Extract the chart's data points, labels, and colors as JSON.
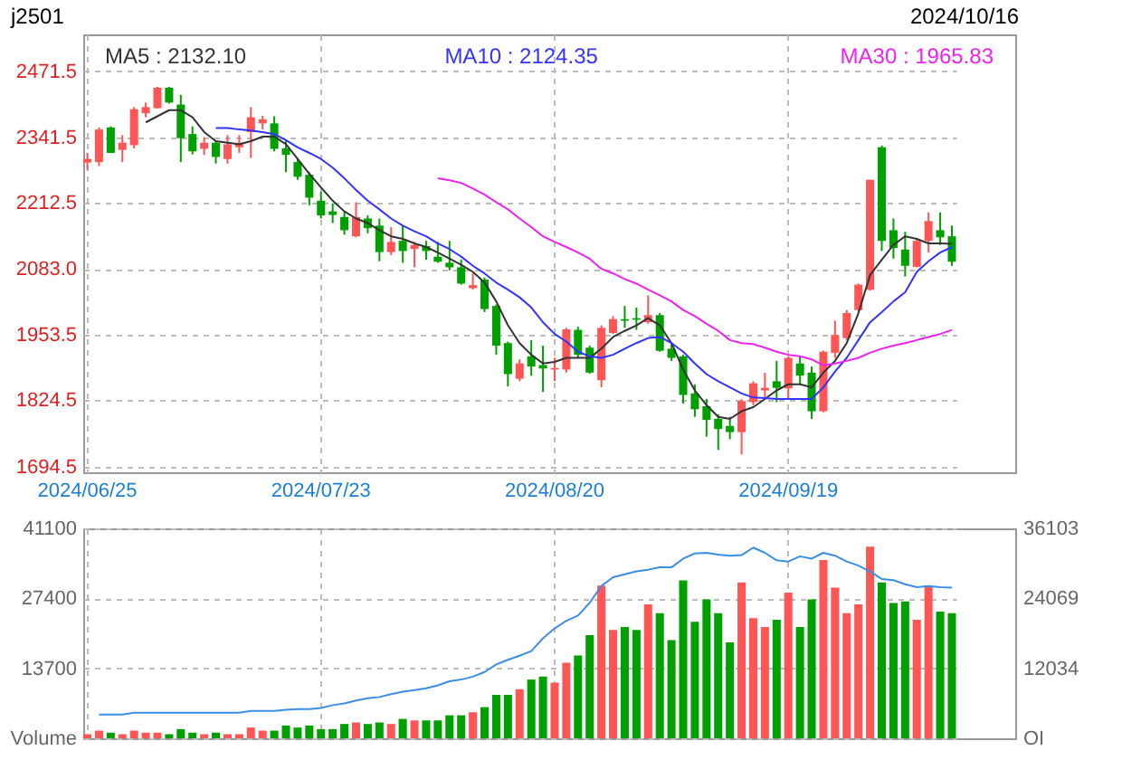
{
  "chart_data": [
    {
      "type": "candlestick",
      "title": "j2501",
      "annotations": [
        "2024/10/16"
      ],
      "legend": "top",
      "grid": true,
      "categories": [
        "2024/06/25",
        null,
        null,
        null,
        null,
        null,
        null,
        null,
        null,
        null,
        null,
        null,
        null,
        null,
        null,
        null,
        null,
        null,
        null,
        null,
        "2024/07/23",
        null,
        null,
        null,
        null,
        null,
        null,
        null,
        null,
        null,
        null,
        null,
        null,
        null,
        null,
        null,
        null,
        null,
        null,
        null,
        "2024/08/20",
        null,
        null,
        null,
        null,
        null,
        null,
        null,
        null,
        null,
        null,
        null,
        null,
        null,
        null,
        null,
        null,
        null,
        null,
        null,
        "2024/09/19",
        null,
        null,
        null,
        null,
        null,
        null,
        null,
        null,
        null,
        null,
        null,
        null,
        null,
        null
      ],
      "ylim": [
        1683,
        2544
      ],
      "yticks": [
        1694.5,
        1824.5,
        1953.5,
        {
          "value": 2083,
          "label": "2083.0"
        },
        2212.5,
        2341.5,
        2471.5
      ],
      "ohlc": [
        [
          2292,
          2311,
          2278,
          2299
        ],
        [
          2293,
          2361,
          2285,
          2357
        ],
        [
          2361,
          2363,
          2311,
          2311
        ],
        [
          2317,
          2346,
          2293,
          2331
        ],
        [
          2326,
          2401,
          2320,
          2397
        ],
        [
          2389,
          2410,
          2381,
          2401
        ],
        [
          2399,
          2441,
          2398,
          2439
        ],
        [
          2439,
          2441,
          2408,
          2410
        ],
        [
          2406,
          2425,
          2293,
          2340
        ],
        [
          2348,
          2363,
          2308,
          2314
        ],
        [
          2319,
          2342,
          2307,
          2331
        ],
        [
          2331,
          2334,
          2290,
          2303
        ],
        [
          2299,
          2346,
          2290,
          2328
        ],
        [
          2322,
          2346,
          2311,
          2331
        ],
        [
          2352,
          2401,
          2301,
          2381
        ],
        [
          2369,
          2384,
          2357,
          2377
        ],
        [
          2369,
          2383,
          2314,
          2319
        ],
        [
          2320,
          2336,
          2273,
          2307
        ],
        [
          2293,
          2301,
          2258,
          2264
        ],
        [
          2268,
          2273,
          2208,
          2223
        ],
        [
          2217,
          2235,
          2182,
          2188
        ],
        [
          2196,
          2212,
          2173,
          2189
        ],
        [
          2185,
          2196,
          2150,
          2159
        ],
        [
          2147,
          2214,
          2145,
          2185
        ],
        [
          2182,
          2188,
          2153,
          2163
        ],
        [
          2168,
          2182,
          2098,
          2116
        ],
        [
          2116,
          2165,
          2110,
          2136
        ],
        [
          2138,
          2168,
          2095,
          2118
        ],
        [
          2122,
          2136,
          2086,
          2130
        ],
        [
          2128,
          2138,
          2101,
          2118
        ],
        [
          2107,
          2136,
          2095,
          2097
        ],
        [
          2095,
          2138,
          2080,
          2086
        ],
        [
          2086,
          2101,
          2052,
          2054
        ],
        [
          2045,
          2074,
          2042,
          2051
        ],
        [
          2062,
          2066,
          1998,
          2004
        ],
        [
          2010,
          2013,
          1914,
          1932
        ],
        [
          1937,
          1940,
          1852,
          1876
        ],
        [
          1867,
          1905,
          1862,
          1897
        ],
        [
          1911,
          1943,
          1873,
          1891
        ],
        [
          1894,
          1932,
          1841,
          1887
        ],
        [
          1885,
          1908,
          1862,
          1888
        ],
        [
          1885,
          1967,
          1879,
          1964
        ],
        [
          1963,
          1969,
          1908,
          1914
        ],
        [
          1928,
          1932,
          1877,
          1879
        ],
        [
          1864,
          1972,
          1850,
          1967
        ],
        [
          1957,
          1990,
          1955,
          1984
        ],
        [
          1984,
          2010,
          1967,
          1981
        ],
        [
          1986,
          2007,
          1963,
          1983
        ],
        [
          1978,
          2031,
          1975,
          1992
        ],
        [
          1992,
          1996,
          1920,
          1922
        ],
        [
          1926,
          1934,
          1902,
          1908
        ],
        [
          1911,
          1914,
          1818,
          1835
        ],
        [
          1838,
          1856,
          1792,
          1807
        ],
        [
          1813,
          1827,
          1753,
          1786
        ],
        [
          1788,
          1797,
          1727,
          1768
        ],
        [
          1774,
          1792,
          1748,
          1762
        ],
        [
          1762,
          1827,
          1718,
          1823
        ],
        [
          1821,
          1862,
          1815,
          1858
        ],
        [
          1844,
          1879,
          1827,
          1849
        ],
        [
          1862,
          1902,
          1821,
          1849
        ],
        [
          1848,
          1911,
          1827,
          1908
        ],
        [
          1897,
          1911,
          1856,
          1873
        ],
        [
          1879,
          1891,
          1788,
          1803
        ],
        [
          1803,
          1922,
          1801,
          1920
        ],
        [
          1918,
          1981,
          1908,
          1953
        ],
        [
          1947,
          2002,
          1943,
          1996
        ],
        [
          2002,
          2054,
          1998,
          2052
        ],
        [
          2042,
          2258,
          2040,
          2258
        ],
        [
          2322,
          2325,
          2118,
          2138
        ],
        [
          2159,
          2182,
          2103,
          2124
        ],
        [
          2121,
          2156,
          2068,
          2089
        ],
        [
          2087,
          2142,
          2086,
          2138
        ],
        [
          2138,
          2194,
          2115,
          2177
        ],
        [
          2159,
          2194,
          2130,
          2145
        ],
        [
          2147,
          2168,
          2089,
          2097
        ]
      ],
      "colors": [
        "#ff5555",
        "#ff5555",
        "#00a000",
        "#ff5555",
        "#ff5555",
        "#ff5555",
        "#ff5555",
        "#00a000",
        "#00a000",
        "#00a000",
        "#ff5555",
        "#00a000",
        "#ff5555",
        "#ff5555",
        "#ff5555",
        "#ff5555",
        "#00a000",
        "#00a000",
        "#00a000",
        "#00a000",
        "#00a000",
        "#00a000",
        "#00a000",
        "#ff5555",
        "#00a000",
        "#00a000",
        "#ff5555",
        "#00a000",
        "#ff5555",
        "#00a000",
        "#00a000",
        "#00a000",
        "#00a000",
        "#ff5555",
        "#00a000",
        "#00a000",
        "#00a000",
        "#ff5555",
        "#00a000",
        "#00a000",
        "#ff5555",
        "#ff5555",
        "#00a000",
        "#00a000",
        "#ff5555",
        "#ff5555",
        "#00a000",
        "#00a000",
        "#ff5555",
        "#00a000",
        "#00a000",
        "#00a000",
        "#00a000",
        "#00a000",
        "#00a000",
        "#00a000",
        "#ff5555",
        "#ff5555",
        "#ff5555",
        "#00a000",
        "#ff5555",
        "#00a000",
        "#00a000",
        "#ff5555",
        "#ff5555",
        "#ff5555",
        "#ff5555",
        "#ff5555",
        "#00a000",
        "#00a000",
        "#00a000",
        "#ff5555",
        "#ff5555",
        "#00a000",
        "#00a000"
      ],
      "series": [
        {
          "type": "line",
          "name": "MA5 : 2132.10",
          "color": "#333333",
          "values": [
            null,
            null,
            null,
            null,
            null,
            2371,
            2383,
            2395,
            2395,
            2381,
            2352,
            2334,
            2331,
            2328,
            2334,
            2343,
            2343,
            2328,
            2299,
            2270,
            2243,
            2217,
            2196,
            2182,
            2173,
            2159,
            2147,
            2142,
            2133,
            2126,
            2115,
            2103,
            2091,
            2077,
            2056,
            2019,
            1972,
            1937,
            1914,
            1897,
            1900,
            1908,
            1908,
            1908,
            1926,
            1949,
            1961,
            1972,
            1986,
            1972,
            1937,
            1885,
            1844,
            1815,
            1792,
            1788,
            1803,
            1811,
            1827,
            1844,
            1856,
            1856,
            1850,
            1879,
            1902,
            1937,
            1996,
            2071,
            2101,
            2130,
            2147,
            2142,
            2133,
            2133,
            2132
          ]
        },
        {
          "type": "line",
          "name": "MA10 : 2124.35",
          "color": "#3333ff",
          "values": [
            null,
            null,
            null,
            null,
            null,
            null,
            null,
            null,
            null,
            null,
            null,
            2360,
            2360,
            2357,
            2355,
            2352,
            2348,
            2336,
            2322,
            2311,
            2299,
            2282,
            2261,
            2238,
            2217,
            2200,
            2182,
            2168,
            2157,
            2147,
            2133,
            2122,
            2107,
            2089,
            2074,
            2056,
            2042,
            2027,
            2007,
            1978,
            1955,
            1940,
            1920,
            1911,
            1908,
            1914,
            1926,
            1937,
            1947,
            1949,
            1937,
            1920,
            1897,
            1876,
            1862,
            1850,
            1838,
            1830,
            1829,
            1827,
            1827,
            1827,
            1827,
            1850,
            1881,
            1908,
            1943,
            1978,
            1998,
            2019,
            2037,
            2077,
            2098,
            2115,
            2126
          ]
        },
        {
          "type": "line",
          "name": "MA30 : 1965.83",
          "color": "#ee22ee",
          "values": [
            null,
            null,
            null,
            null,
            null,
            null,
            null,
            null,
            null,
            null,
            null,
            null,
            null,
            null,
            null,
            null,
            null,
            null,
            null,
            null,
            null,
            null,
            null,
            null,
            null,
            null,
            null,
            null,
            null,
            null,
            2261,
            2257,
            2252,
            2241,
            2229,
            2214,
            2200,
            2182,
            2165,
            2147,
            2136,
            2126,
            2115,
            2103,
            2083,
            2074,
            2063,
            2054,
            2042,
            2031,
            2019,
            2002,
            1990,
            1975,
            1961,
            1943,
            1937,
            1935,
            1928,
            1920,
            1914,
            1911,
            1905,
            1893,
            1897,
            1902,
            1908,
            1918,
            1926,
            1932,
            1937,
            1943,
            1949,
            1955,
            1963
          ]
        }
      ]
    },
    {
      "type": "bar",
      "grid": true,
      "tick_labels": "y",
      "categories": [
        "2024/06/25",
        null,
        null,
        null,
        null,
        null,
        null,
        null,
        null,
        null,
        null,
        null,
        null,
        null,
        null,
        null,
        null,
        null,
        null,
        null,
        "2024/07/23",
        null,
        null,
        null,
        null,
        null,
        null,
        null,
        null,
        null,
        null,
        null,
        null,
        null,
        null,
        null,
        null,
        null,
        null,
        null,
        "2024/08/20",
        null,
        null,
        null,
        null,
        null,
        null,
        null,
        null,
        null,
        null,
        null,
        null,
        null,
        null,
        null,
        null,
        null,
        null,
        null,
        "2024/09/19",
        null,
        null,
        null,
        null,
        null,
        null,
        null,
        null,
        null,
        null,
        null,
        null,
        null,
        null
      ],
      "ylim": [
        0,
        41100
      ],
      "yticks": [
        {
          "value": 0,
          "label": "Volume"
        },
        13700,
        27400,
        41100
      ],
      "y2lim": [
        0,
        36103
      ],
      "y2ticks": [
        {
          "value": 0,
          "label": "OI"
        },
        12034,
        24069,
        36103
      ],
      "series": [
        {
          "type": "bar",
          "colors": [
            "#ff5555",
            "#ff5555",
            "#00a000",
            "#ff5555",
            "#ff5555",
            "#ff5555",
            "#ff5555",
            "#00a000",
            "#00a000",
            "#00a000",
            "#ff5555",
            "#00a000",
            "#ff5555",
            "#ff5555",
            "#ff5555",
            "#ff5555",
            "#00a000",
            "#00a000",
            "#00a000",
            "#00a000",
            "#00a000",
            "#00a000",
            "#00a000",
            "#ff5555",
            "#00a000",
            "#00a000",
            "#ff5555",
            "#00a000",
            "#ff5555",
            "#00a000",
            "#00a000",
            "#00a000",
            "#00a000",
            "#ff5555",
            "#00a000",
            "#00a000",
            "#00a000",
            "#ff5555",
            "#00a000",
            "#00a000",
            "#ff5555",
            "#ff5555",
            "#00a000",
            "#00a000",
            "#ff5555",
            "#ff5555",
            "#00a000",
            "#00a000",
            "#ff5555",
            "#00a000",
            "#00a000",
            "#00a000",
            "#00a000",
            "#00a000",
            "#00a000",
            "#00a000",
            "#ff5555",
            "#ff5555",
            "#ff5555",
            "#00a000",
            "#ff5555",
            "#00a000",
            "#00a000",
            "#ff5555",
            "#ff5555",
            "#ff5555",
            "#ff5555",
            "#ff5555",
            "#00a000",
            "#00a000",
            "#00a000",
            "#ff5555",
            "#ff5555",
            "#00a000",
            "#00a000"
          ],
          "values": [
            800,
            1500,
            1100,
            800,
            1500,
            1100,
            1100,
            800,
            1800,
            1100,
            800,
            1100,
            800,
            800,
            2100,
            1500,
            1500,
            2500,
            2100,
            2500,
            1800,
            1800,
            2800,
            3100,
            2800,
            3100,
            2800,
            3800,
            3500,
            3500,
            3500,
            4500,
            4500,
            5100,
            6100,
            8500,
            8500,
            9600,
            11500,
            12100,
            10900,
            14800,
            16200,
            20200,
            29900,
            21200,
            21800,
            21200,
            26200,
            24500,
            19200,
            30900,
            22800,
            27200,
            24500,
            18800,
            30500,
            23500,
            21800,
            23200,
            28500,
            21800,
            27200,
            34900,
            29500,
            24500,
            26200,
            37500,
            30500,
            26500,
            26800,
            23200,
            29900,
            24800,
            24500
          ]
        },
        {
          "type": "line",
          "axis": "y2",
          "color": "#3a8ee6",
          "values": [
            null,
            4100,
            4100,
            4100,
            4400,
            4400,
            4400,
            4400,
            4400,
            4400,
            4400,
            4400,
            4400,
            4400,
            4700,
            4700,
            4700,
            4900,
            5000,
            5000,
            5200,
            5700,
            6000,
            6500,
            6900,
            7100,
            7600,
            8000,
            8300,
            8600,
            9100,
            9800,
            10100,
            10600,
            11400,
            12700,
            13500,
            14200,
            15000,
            17200,
            18900,
            20200,
            21100,
            23300,
            26200,
            27700,
            28200,
            28700,
            29000,
            29400,
            29400,
            30900,
            31800,
            31900,
            31600,
            31400,
            31500,
            32800,
            31900,
            30600,
            30400,
            31300,
            30900,
            31900,
            31400,
            30400,
            29700,
            28700,
            27400,
            27200,
            26500,
            26000,
            26200,
            26000,
            25900
          ]
        }
      ]
    }
  ]
}
